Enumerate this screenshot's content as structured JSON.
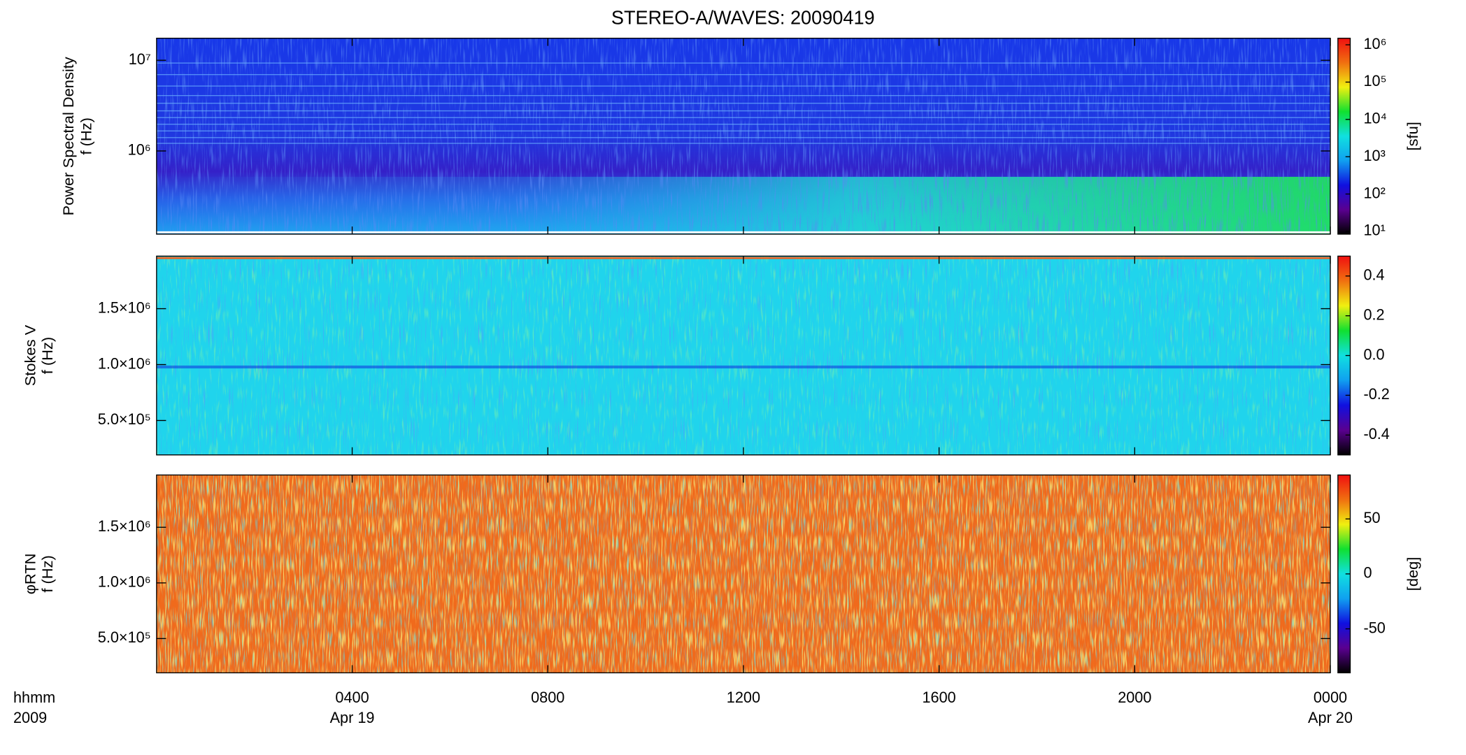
{
  "chart_data": [
    {
      "type": "heatmap",
      "title": "STEREO-A/WAVES: 20090419",
      "ylabel": [
        "Power Spectral Density",
        "f (Hz)"
      ],
      "log_y": true,
      "ylim": [
        121000,
        17500000
      ],
      "yticks": [
        {
          "value": 1000000,
          "label": "10⁶"
        },
        {
          "value": 10000000,
          "label": "10⁷"
        }
      ],
      "xlim": [
        0,
        24
      ],
      "colorbar": {
        "label": "[sfu]",
        "log": true,
        "lim": [
          8.4,
          1500000
        ],
        "ticks": [
          {
            "value": 10,
            "label": "10¹"
          },
          {
            "value": 100,
            "label": "10²"
          },
          {
            "value": 1000,
            "label": "10³"
          },
          {
            "value": 10000,
            "label": "10⁴"
          },
          {
            "value": 100000,
            "label": "10⁵"
          },
          {
            "value": 1000000,
            "label": "10⁶"
          }
        ],
        "colormap": [
          "#000000",
          "#5a0090",
          "#1010e0",
          "#10a0f0",
          "#10e0e0",
          "#10e030",
          "#f0f010",
          "#f07010",
          "#f01010"
        ]
      }
    },
    {
      "type": "heatmap",
      "ylabel": [
        "Stokes V",
        "f (Hz)"
      ],
      "log_y": false,
      "ylim": [
        192000,
        1970000
      ],
      "yticks": [
        {
          "value": 500000,
          "label": "5.0×10⁵"
        },
        {
          "value": 1000000,
          "label": "1.0×10⁶"
        },
        {
          "value": 1500000,
          "label": "1.5×10⁶"
        }
      ],
      "xlim": [
        0,
        24
      ],
      "colorbar": {
        "log": false,
        "lim": [
          -0.5,
          0.5
        ],
        "ticks": [
          -0.4,
          -0.2,
          {
            "value": 0,
            "label": "0.0"
          },
          0.2,
          0.4
        ],
        "colormap": [
          "#000000",
          "#5a0090",
          "#1010e0",
          "#10a0f0",
          "#10e0e0",
          "#10e030",
          "#f0f010",
          "#f07010",
          "#f01010"
        ]
      }
    },
    {
      "type": "heatmap",
      "ylabel": [
        "φRTN",
        "f (Hz)"
      ],
      "log_y": false,
      "ylim": [
        192000,
        1970000
      ],
      "yticks": [
        {
          "value": 500000,
          "label": "5.0×10⁵"
        },
        {
          "value": 1000000,
          "label": "1.0×10⁶"
        },
        {
          "value": 1500000,
          "label": "1.5×10⁶"
        }
      ],
      "xlim": [
        0,
        24
      ],
      "xticks": [
        {
          "value": 4,
          "label": "0400"
        },
        {
          "value": 8,
          "label": "0800"
        },
        {
          "value": 12,
          "label": "1200"
        },
        {
          "value": 16,
          "label": "1600"
        },
        {
          "value": 20,
          "label": "2000"
        },
        {
          "value": 24,
          "label": "0000"
        }
      ],
      "date_labels": [
        {
          "value": 4,
          "label": "Apr 19"
        },
        {
          "value": 24,
          "label": "Apr 20"
        }
      ],
      "xlabel": [
        "hhmm",
        "2009"
      ],
      "colorbar": {
        "label": "[deg]",
        "log": false,
        "lim": [
          -90,
          90
        ],
        "ticks": [
          -50,
          0,
          50
        ],
        "colormap": [
          "#000000",
          "#5a0090",
          "#1010e0",
          "#10a0f0",
          "#10e0e0",
          "#10e030",
          "#f0f010",
          "#f07010",
          "#f01010"
        ]
      }
    }
  ]
}
